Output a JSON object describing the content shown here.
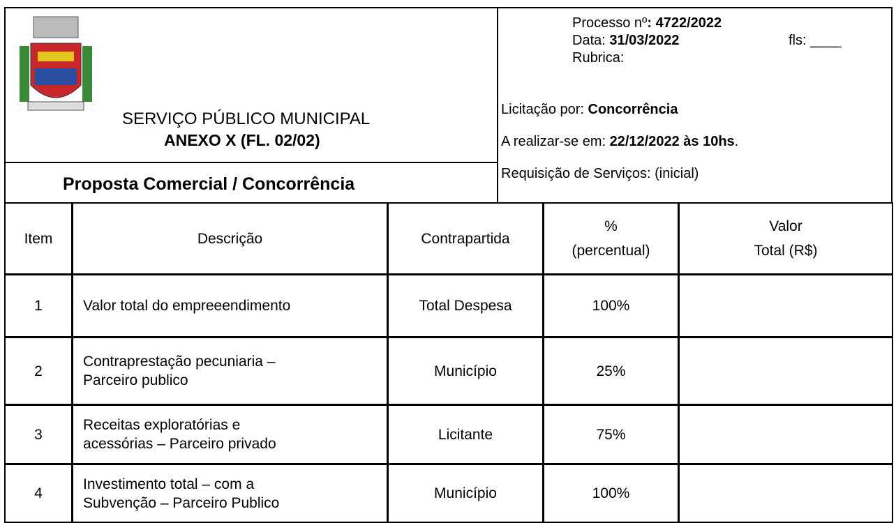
{
  "header": {
    "title": "SERVIÇO PÚBLICO MUNICIPAL",
    "subtitle": "ANEXO X (FL. 02/02)",
    "form_name": "Proposta Comercial / Concorrência",
    "process_label": "Processo nº",
    "process_value": ": 4722/2022",
    "date_label": "Data: ",
    "date_value": "31/03/2022",
    "fls": "fls: ____",
    "rubrica": "Rubrica:",
    "bid_label": "Licitação por: ",
    "bid_value": "Concorrência",
    "when_label": "A realizar-se em: ",
    "when_value": "22/12/2022 às 10hs",
    "when_end": ".",
    "requisition": "Requisição de Serviços: (inicial)"
  },
  "table": {
    "columns": [
      [
        "Item"
      ],
      [
        "Descrição"
      ],
      [
        "Contrapartida"
      ],
      [
        "%",
        "(percentual)"
      ],
      [
        "Valor",
        "Total (R$)"
      ]
    ],
    "rows": [
      [
        [
          "1"
        ],
        [
          "Valor total do empreeendimento"
        ],
        [
          "Total Despesa"
        ],
        [
          "100%"
        ],
        []
      ],
      [
        [
          "2"
        ],
        [
          "Contraprestação pecuniaria –",
          "Parceiro publico"
        ],
        [
          "Município"
        ],
        [
          "25%"
        ],
        []
      ],
      [
        [
          "3"
        ],
        [
          "Receitas exploratórias e",
          "acessórias – Parceiro privado"
        ],
        [
          "Licitante"
        ],
        [
          "75%"
        ],
        []
      ],
      [
        [
          "4"
        ],
        [
          "Investimento total – com a",
          "Subvenção – Parceiro Publico"
        ],
        [
          "Município"
        ],
        [
          "100%"
        ],
        []
      ]
    ]
  }
}
